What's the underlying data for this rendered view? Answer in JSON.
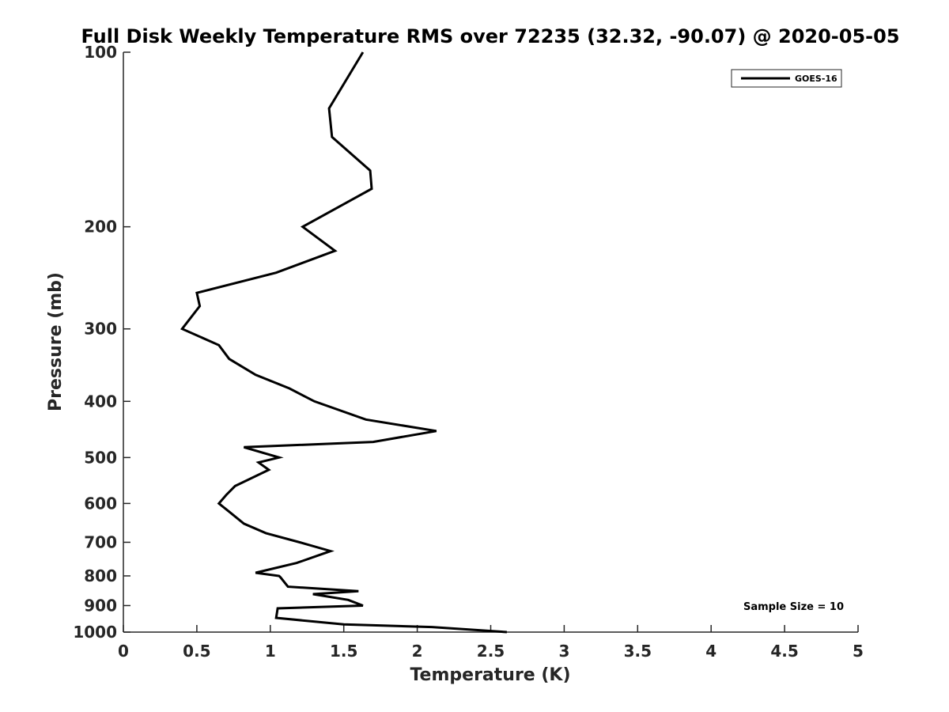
{
  "chart_data": {
    "type": "line",
    "title": "Full Disk Weekly Temperature RMS over 72235 (32.32, -90.07) @ 2020-05-05",
    "xlabel": "Temperature (K)",
    "ylabel": "Pressure (mb)",
    "xlim": [
      0,
      5
    ],
    "ylim": [
      100,
      1000
    ],
    "y_scale": "log",
    "y_reversed": true,
    "grid": false,
    "legend_position": "top-right",
    "x_ticks": [
      0,
      0.5,
      1,
      1.5,
      2,
      2.5,
      3,
      3.5,
      4,
      4.5,
      5
    ],
    "x_tick_labels": [
      "0",
      "0.5",
      "1",
      "1.5",
      "2",
      "2.5",
      "3",
      "3.5",
      "4",
      "4.5",
      "5"
    ],
    "y_ticks": [
      100,
      200,
      300,
      400,
      500,
      600,
      700,
      800,
      900,
      1000
    ],
    "y_tick_labels": [
      "100",
      "200",
      "300",
      "400",
      "500",
      "600",
      "700",
      "800",
      "900",
      "1000"
    ],
    "series": [
      {
        "name": "GOES-16",
        "color": "#000000",
        "x": [
          1.63,
          1.4,
          1.42,
          1.68,
          1.69,
          1.22,
          1.44,
          1.04,
          0.5,
          0.52,
          0.4,
          0.65,
          0.72,
          0.9,
          1.13,
          1.3,
          1.65,
          2.13,
          1.7,
          0.82,
          1.06,
          0.92,
          0.99,
          0.76,
          0.7,
          0.65,
          0.72,
          0.82,
          0.97,
          1.2,
          1.41,
          1.18,
          0.9,
          1.06,
          1.07,
          1.12,
          1.6,
          1.29,
          1.53,
          1.63,
          1.05,
          1.04,
          1.5,
          2.1,
          2.61
        ],
        "y": [
          100,
          125,
          140,
          160,
          172,
          200,
          220,
          240,
          260,
          274,
          300,
          320,
          338,
          360,
          380,
          400,
          430,
          450,
          470,
          480,
          500,
          510,
          525,
          560,
          580,
          600,
          620,
          650,
          675,
          700,
          725,
          760,
          790,
          800,
          805,
          835,
          850,
          860,
          880,
          900,
          910,
          945,
          970,
          980,
          1000
        ]
      }
    ],
    "annotations": [
      "Sample Size = 10"
    ]
  }
}
